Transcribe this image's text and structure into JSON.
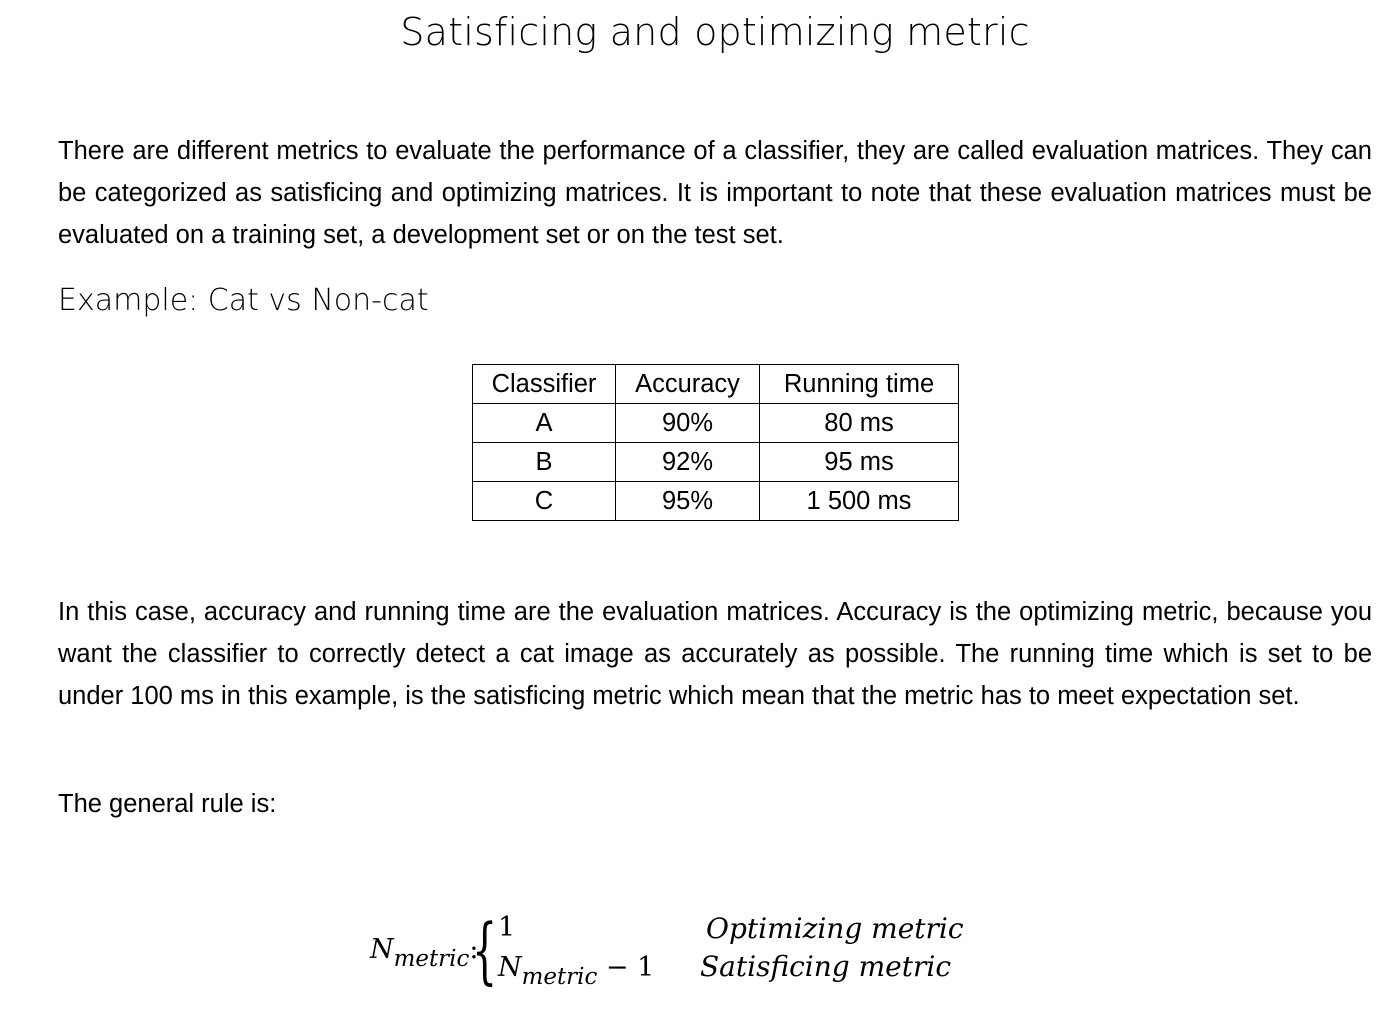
{
  "title": "Satisficing and optimizing metric",
  "paragraphs": {
    "intro": "There are different metrics to evaluate the performance of a classifier, they are called evaluation matrices. They can be categorized as satisficing and optimizing matrices. It is important to note that these evaluation matrices must be evaluated on a training set, a development set or on the test set.",
    "explanation": "In this case, accuracy and running time are the evaluation matrices. Accuracy is the optimizing metric, because you want the classifier to correctly detect a cat image as accurately as possible. The running time which is set to be under 100 ms in this example, is the satisficing metric which mean that the metric has to meet expectation set.",
    "rule_intro": "The general rule is:"
  },
  "example_heading": "Example: Cat vs Non-cat",
  "table": {
    "headers": [
      "Classifier",
      "Accuracy",
      "Running time"
    ],
    "rows": [
      [
        "A",
        "90%",
        "80 ms"
      ],
      [
        "B",
        "92%",
        "95 ms"
      ],
      [
        "C",
        "95%",
        "1 500 ms"
      ]
    ]
  },
  "formula": {
    "lhs_symbol": "N",
    "lhs_subscript": "metric",
    "lhs_colon": ":",
    "case1_value": "1",
    "case2_symbol": "N",
    "case2_subscript": "metric",
    "case2_suffix": " − 1",
    "case1_label": "Optimizing metric",
    "case2_label": "Satisficing metric"
  }
}
